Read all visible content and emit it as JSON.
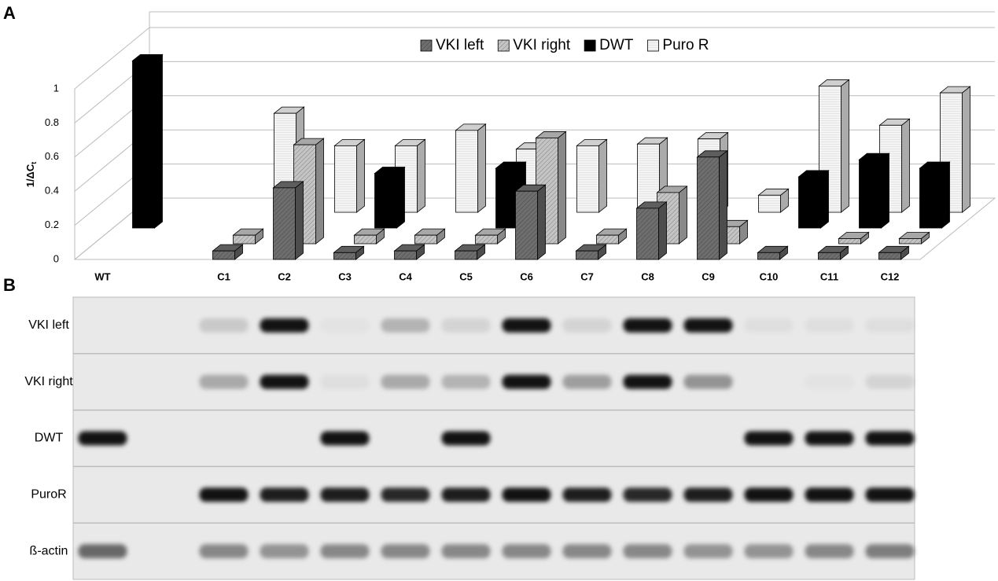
{
  "chart_data": {
    "type": "bar",
    "panel": "A",
    "ylabel": "1/ΔC",
    "ylabel_sub": "t",
    "categories": [
      "WT",
      null,
      "C1",
      "C2",
      "C3",
      "C4",
      "C5",
      "C6",
      "C7",
      "C8",
      "C9",
      "C10",
      "C11",
      "C12"
    ],
    "series": [
      {
        "name": "VKI left",
        "color": "#6e6e6e",
        "values": [
          null,
          null,
          0.05,
          0.42,
          0.04,
          0.05,
          0.05,
          0.4,
          0.05,
          0.3,
          0.6,
          0.04,
          0.04,
          0.04
        ]
      },
      {
        "name": "VKI right",
        "color": "#c4c4c4",
        "values": [
          null,
          null,
          0.05,
          0.58,
          0.05,
          0.05,
          0.05,
          0.62,
          0.05,
          0.3,
          0.1,
          null,
          0.03,
          0.03
        ]
      },
      {
        "name": "DWT",
        "color": "#000000",
        "values": [
          0.98,
          null,
          null,
          null,
          0.32,
          null,
          0.35,
          null,
          null,
          null,
          null,
          0.3,
          0.4,
          0.35
        ]
      },
      {
        "name": "Puro R",
        "color": "#f4f4f4",
        "values": [
          null,
          null,
          0.58,
          0.39,
          0.39,
          0.48,
          0.37,
          0.39,
          0.4,
          0.43,
          0.1,
          0.74,
          0.51,
          0.7
        ]
      }
    ],
    "ylim": [
      0,
      1
    ],
    "yticks": [
      0,
      0.2,
      0.4,
      0.6,
      0.8,
      1
    ],
    "grid": true,
    "legend": "top"
  },
  "gel": {
    "panel": "B",
    "rows": [
      {
        "name": "VKI left",
        "bands": [
          0,
          null,
          0.15,
          1,
          0.03,
          0.25,
          0.1,
          1,
          0.1,
          1,
          1,
          0.05,
          0.05,
          0.05
        ]
      },
      {
        "name": "VKI right",
        "bands": [
          0,
          null,
          0.3,
          1,
          0.05,
          0.3,
          0.25,
          1,
          0.35,
          1,
          0.4,
          0,
          0.03,
          0.1
        ]
      },
      {
        "name": "DWT",
        "bands": [
          1,
          null,
          0,
          0,
          1,
          0,
          1,
          0,
          0,
          0,
          0,
          1,
          1,
          1
        ]
      },
      {
        "name": "PuroR",
        "bands": [
          0,
          null,
          1,
          0.95,
          0.95,
          0.9,
          0.95,
          1,
          0.95,
          0.9,
          0.95,
          1,
          1,
          1
        ]
      },
      {
        "name": "ß-actin",
        "bands": [
          0.6,
          null,
          0.45,
          0.4,
          0.45,
          0.45,
          0.45,
          0.45,
          0.45,
          0.45,
          0.4,
          0.4,
          0.45,
          0.5
        ]
      }
    ]
  }
}
